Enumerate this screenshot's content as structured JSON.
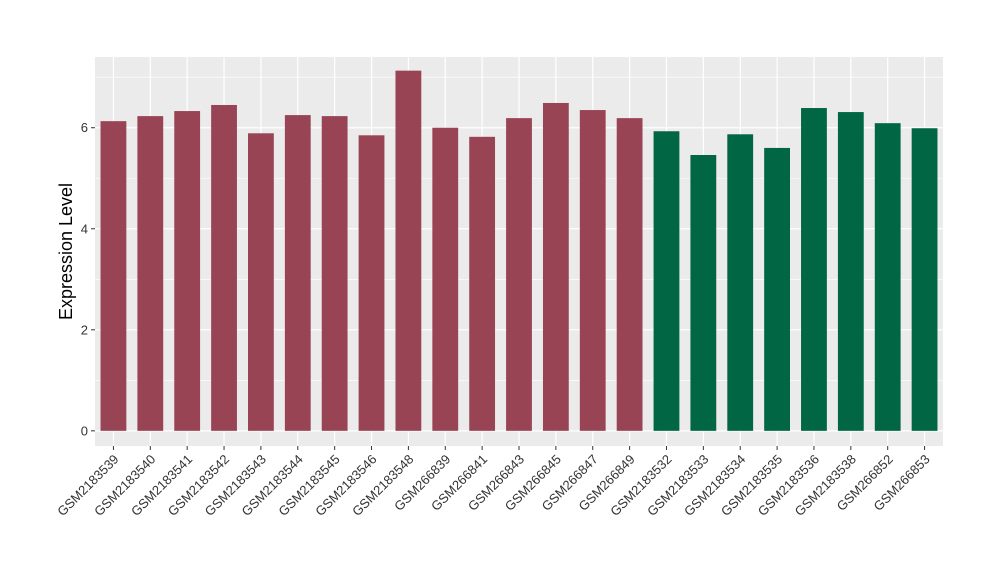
{
  "chart_data": {
    "type": "bar",
    "title": "",
    "xlabel": "",
    "ylabel": "Expression Level",
    "ylim": [
      -0.3,
      7.4
    ],
    "yticks": [
      0,
      2,
      4,
      6
    ],
    "grid": true,
    "legend": "none",
    "colors": {
      "group1": "#994455",
      "group2": "#006644",
      "panel_bg": "#EBEBEB",
      "grid": "#FFFFFF"
    },
    "categories": [
      "GSM2183539",
      "GSM2183540",
      "GSM2183541",
      "GSM2183542",
      "GSM2183543",
      "GSM2183544",
      "GSM2183545",
      "GSM2183546",
      "GSM2183548",
      "GSM266839",
      "GSM266841",
      "GSM266843",
      "GSM266845",
      "GSM266847",
      "GSM266849",
      "GSM2183532",
      "GSM2183533",
      "GSM2183534",
      "GSM2183535",
      "GSM2183536",
      "GSM2183538",
      "GSM266852",
      "GSM266853"
    ],
    "values": [
      6.13,
      6.23,
      6.33,
      6.45,
      5.89,
      6.25,
      6.23,
      5.85,
      7.13,
      6.0,
      5.82,
      6.19,
      6.49,
      6.35,
      6.19,
      5.93,
      5.46,
      5.87,
      5.6,
      6.39,
      6.31,
      6.09,
      5.99
    ],
    "groups": [
      "group1",
      "group1",
      "group1",
      "group1",
      "group1",
      "group1",
      "group1",
      "group1",
      "group1",
      "group1",
      "group1",
      "group1",
      "group1",
      "group1",
      "group1",
      "group2",
      "group2",
      "group2",
      "group2",
      "group2",
      "group2",
      "group2",
      "group2"
    ]
  }
}
